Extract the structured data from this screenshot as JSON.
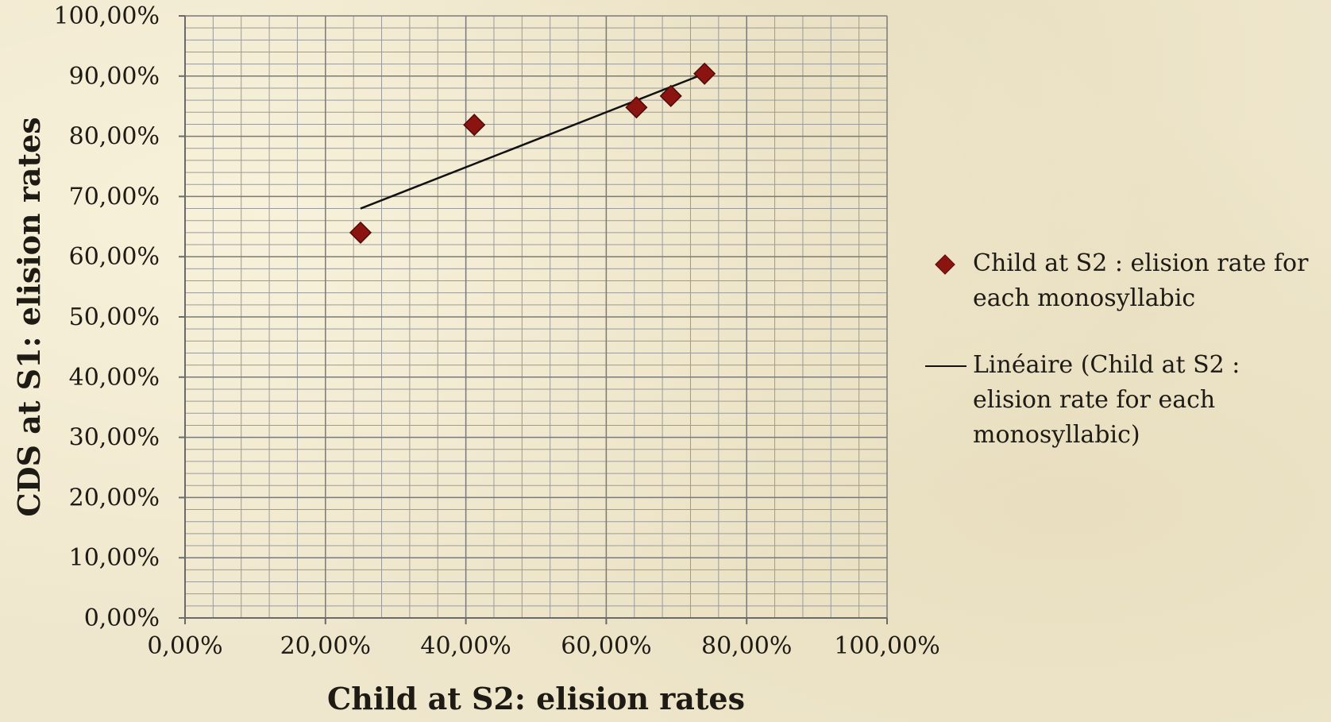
{
  "chart_data": {
    "type": "scatter",
    "xlabel": "Child at S2: elision rates",
    "ylabel": "CDS at S1: elision rates",
    "xlim": [
      0,
      100
    ],
    "ylim": [
      0,
      100
    ],
    "x_ticks": [
      "0,00%",
      "20,00%",
      "40,00%",
      "60,00%",
      "80,00%",
      "100,00%"
    ],
    "y_ticks": [
      "0,00%",
      "10,00%",
      "20,00%",
      "30,00%",
      "40,00%",
      "50,00%",
      "60,00%",
      "70,00%",
      "80,00%",
      "90,00%",
      "100,00%"
    ],
    "grid": true,
    "legend_position": "right",
    "series": [
      {
        "name": "Child at S2 : elision rate for each monosyllabic",
        "marker": "diamond",
        "color": "#8b1410",
        "points": [
          {
            "x": 25.0,
            "y": 64.0
          },
          {
            "x": 41.2,
            "y": 81.9
          },
          {
            "x": 64.3,
            "y": 84.8
          },
          {
            "x": 69.2,
            "y": 86.7
          },
          {
            "x": 74.0,
            "y": 90.4
          }
        ]
      },
      {
        "name": "Linéaire (Child at S2 : elision rate for each monosyllabic)",
        "type": "trendline",
        "color": "#111111",
        "points": [
          {
            "x": 25.0,
            "y": 68.0
          },
          {
            "x": 74.0,
            "y": 90.4
          }
        ]
      }
    ]
  },
  "legend": {
    "items": [
      {
        "label": "Child at S2 : elision rate for each monosyllabic"
      },
      {
        "label": "Linéaire (Child at S2 : elision rate for each monosyllabic)"
      }
    ]
  }
}
